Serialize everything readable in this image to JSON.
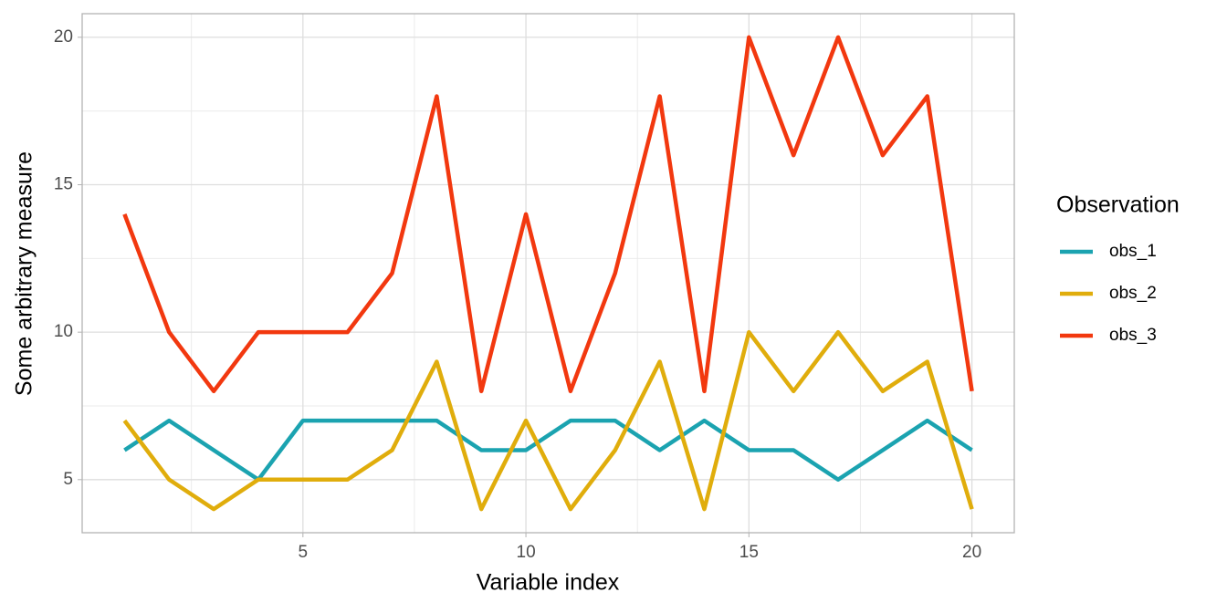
{
  "chart_data": {
    "type": "line",
    "xlabel": "Variable index",
    "ylabel": "Some arbitrary measure",
    "legend_title": "Observation",
    "legend_position": "right",
    "x": [
      1,
      2,
      3,
      4,
      5,
      6,
      7,
      8,
      9,
      10,
      11,
      12,
      13,
      14,
      15,
      16,
      17,
      18,
      19,
      20
    ],
    "series": [
      {
        "name": "obs_1",
        "color": "#1ba3b0",
        "values": [
          6,
          7,
          6,
          5,
          7,
          7,
          7,
          7,
          6,
          6,
          7,
          7,
          6,
          7,
          6,
          6,
          5,
          6,
          7,
          6
        ]
      },
      {
        "name": "obs_2",
        "color": "#e0ad0c",
        "values": [
          7,
          5,
          4,
          5,
          5,
          5,
          6,
          9,
          4,
          7,
          4,
          6,
          9,
          4,
          10,
          8,
          10,
          8,
          9,
          4
        ]
      },
      {
        "name": "obs_3",
        "color": "#f2380f",
        "values": [
          14,
          10,
          8,
          10,
          10,
          10,
          12,
          18,
          8,
          14,
          8,
          12,
          18,
          8,
          20,
          16,
          20,
          16,
          18,
          8
        ]
      }
    ],
    "xlim": [
      0.05,
      20.95
    ],
    "xticks": [
      5,
      10,
      15,
      20
    ],
    "x_minor_ticks": [
      2.5,
      7.5,
      12.5,
      17.5
    ],
    "ylim": [
      3.2,
      20.8
    ],
    "yticks": [
      5,
      10,
      15,
      20
    ],
    "y_minor_ticks": [
      7.5,
      12.5,
      17.5
    ],
    "grid": true
  }
}
